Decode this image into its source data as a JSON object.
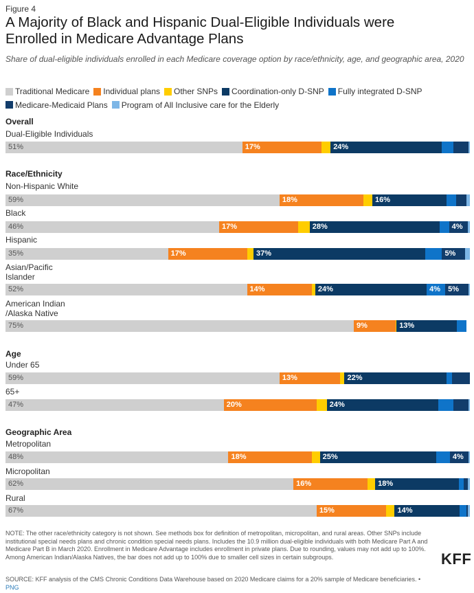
{
  "figure_label": "Figure 4",
  "title": "A Majority of Black and Hispanic Dual-Eligible Individuals were Enrolled in Medicare Advantage Plans",
  "subtitle": "Share of dual-eligible individuals enrolled in each Medicare coverage option by race/ethnicity, age, and geographic area, 2020",
  "colors": {
    "traditional": "#cfcfcf",
    "individual": "#f5821f",
    "other_snps": "#ffcd00",
    "coordination": "#0c3a64",
    "fully_integrated": "#0f74c9",
    "medicare_medicaid": "#123d6b",
    "pace": "#7db6e6"
  },
  "chart_data": {
    "type": "bar",
    "orientation": "horizontal",
    "stacked": true,
    "unit": "%",
    "xlim": [
      0,
      100
    ],
    "legend_position": "top",
    "grid": false,
    "series": [
      {
        "name": "Traditional Medicare",
        "color_key": "traditional"
      },
      {
        "name": "Individual plans",
        "color_key": "individual"
      },
      {
        "name": "Other SNPs",
        "color_key": "other_snps"
      },
      {
        "name": "Coordination-only D-SNP",
        "color_key": "coordination"
      },
      {
        "name": "Fully integrated D-SNP",
        "color_key": "fully_integrated"
      },
      {
        "name": "Medicare-Medicaid Plans",
        "color_key": "medicare_medicaid"
      },
      {
        "name": "Program of All Inclusive care for the Elderly",
        "color_key": "pace"
      }
    ],
    "groups": [
      {
        "title": "Overall",
        "rows": [
          {
            "label": "Dual-Eligible Individuals",
            "values": [
              51,
              17,
              2,
              24,
              2.5,
              3.2,
              0.3
            ],
            "labels": [
              "51%",
              "17%",
              "",
              "24%",
              "",
              "",
              ""
            ]
          }
        ]
      },
      {
        "title": "Race/Ethnicity",
        "rows": [
          {
            "label": "Non-Hispanic White",
            "values": [
              59,
              18,
              2,
              16,
              2,
              2.2,
              0.8
            ],
            "labels": [
              "59%",
              "18%",
              "",
              "16%",
              "",
              "",
              ""
            ]
          },
          {
            "label": "Black",
            "values": [
              46,
              17,
              2.5,
              28,
              2,
              4,
              0.5
            ],
            "labels": [
              "46%",
              "17%",
              "",
              "28%",
              "",
              "4%",
              ""
            ]
          },
          {
            "label": "Hispanic",
            "values": [
              35,
              17,
              1.4,
              37,
              3.6,
              5,
              1
            ],
            "labels": [
              "35%",
              "17%",
              "",
              "37%",
              "",
              "5%",
              ""
            ]
          },
          {
            "label": "Asian/Pacific Islander",
            "values": [
              52,
              14,
              0.7,
              24,
              4,
              5,
              0.3
            ],
            "labels": [
              "52%",
              "14%",
              "",
              "24%",
              "4%",
              "5%",
              ""
            ]
          },
          {
            "label": "American Indian /Alaska Native",
            "values": [
              75,
              9,
              0.2,
              13,
              2,
              0,
              0
            ],
            "labels": [
              "75%",
              "9%",
              "",
              "13%",
              "",
              "",
              ""
            ]
          }
        ]
      },
      {
        "title": "Age",
        "rows": [
          {
            "label": "Under 65",
            "values": [
              59,
              13,
              1,
              22,
              1.2,
              3.8,
              0
            ],
            "labels": [
              "59%",
              "13%",
              "",
              "22%",
              "",
              "",
              ""
            ]
          },
          {
            "label": "65+",
            "values": [
              47,
              20,
              2.2,
              24,
              3.3,
              3.2,
              0.3
            ],
            "labels": [
              "47%",
              "20%",
              "",
              "24%",
              "",
              "",
              ""
            ]
          }
        ]
      },
      {
        "title": "Geographic Area",
        "rows": [
          {
            "label": "Metropolitan",
            "values": [
              48,
              18,
              1.7,
              25,
              3,
              4,
              0.3
            ],
            "labels": [
              "48%",
              "18%",
              "",
              "25%",
              "",
              "4%",
              ""
            ]
          },
          {
            "label": "Micropolitan",
            "values": [
              62,
              16,
              1.6,
              18,
              1,
              1,
              0.4
            ],
            "labels": [
              "62%",
              "16%",
              "",
              "18%",
              "",
              "",
              ""
            ]
          },
          {
            "label": "Rural",
            "values": [
              67,
              15,
              1.8,
              14,
              1.4,
              0.4,
              0.4
            ],
            "labels": [
              "67%",
              "15%",
              "",
              "14%",
              "",
              "",
              ""
            ]
          }
        ]
      }
    ]
  },
  "note": "NOTE: The other race/ethnicity category is not shown. See methods box for definition of metropolitan, micropolitan, and rural areas. Other SNPs include institutional special needs plans and chronic condition special needs plans. Includes the 10.9 million dual-eligible individuals with both Medicare Part A and Medicare Part B in March 2020. Enrollment in Medicare Advantage includes enrollment in private plans. Due to rounding, values may not add up to 100%. Among American Indian/Alaska Natives, the bar does not add up to 100% due to smaller cell sizes in certain subgroups.",
  "source": "SOURCE: KFF analysis of the CMS Chronic Conditions Data Warehouse based on 2020 Medicare claims for a 20% sample of Medicare beneficiaries. •",
  "png_link": "PNG",
  "logo": "KFF"
}
